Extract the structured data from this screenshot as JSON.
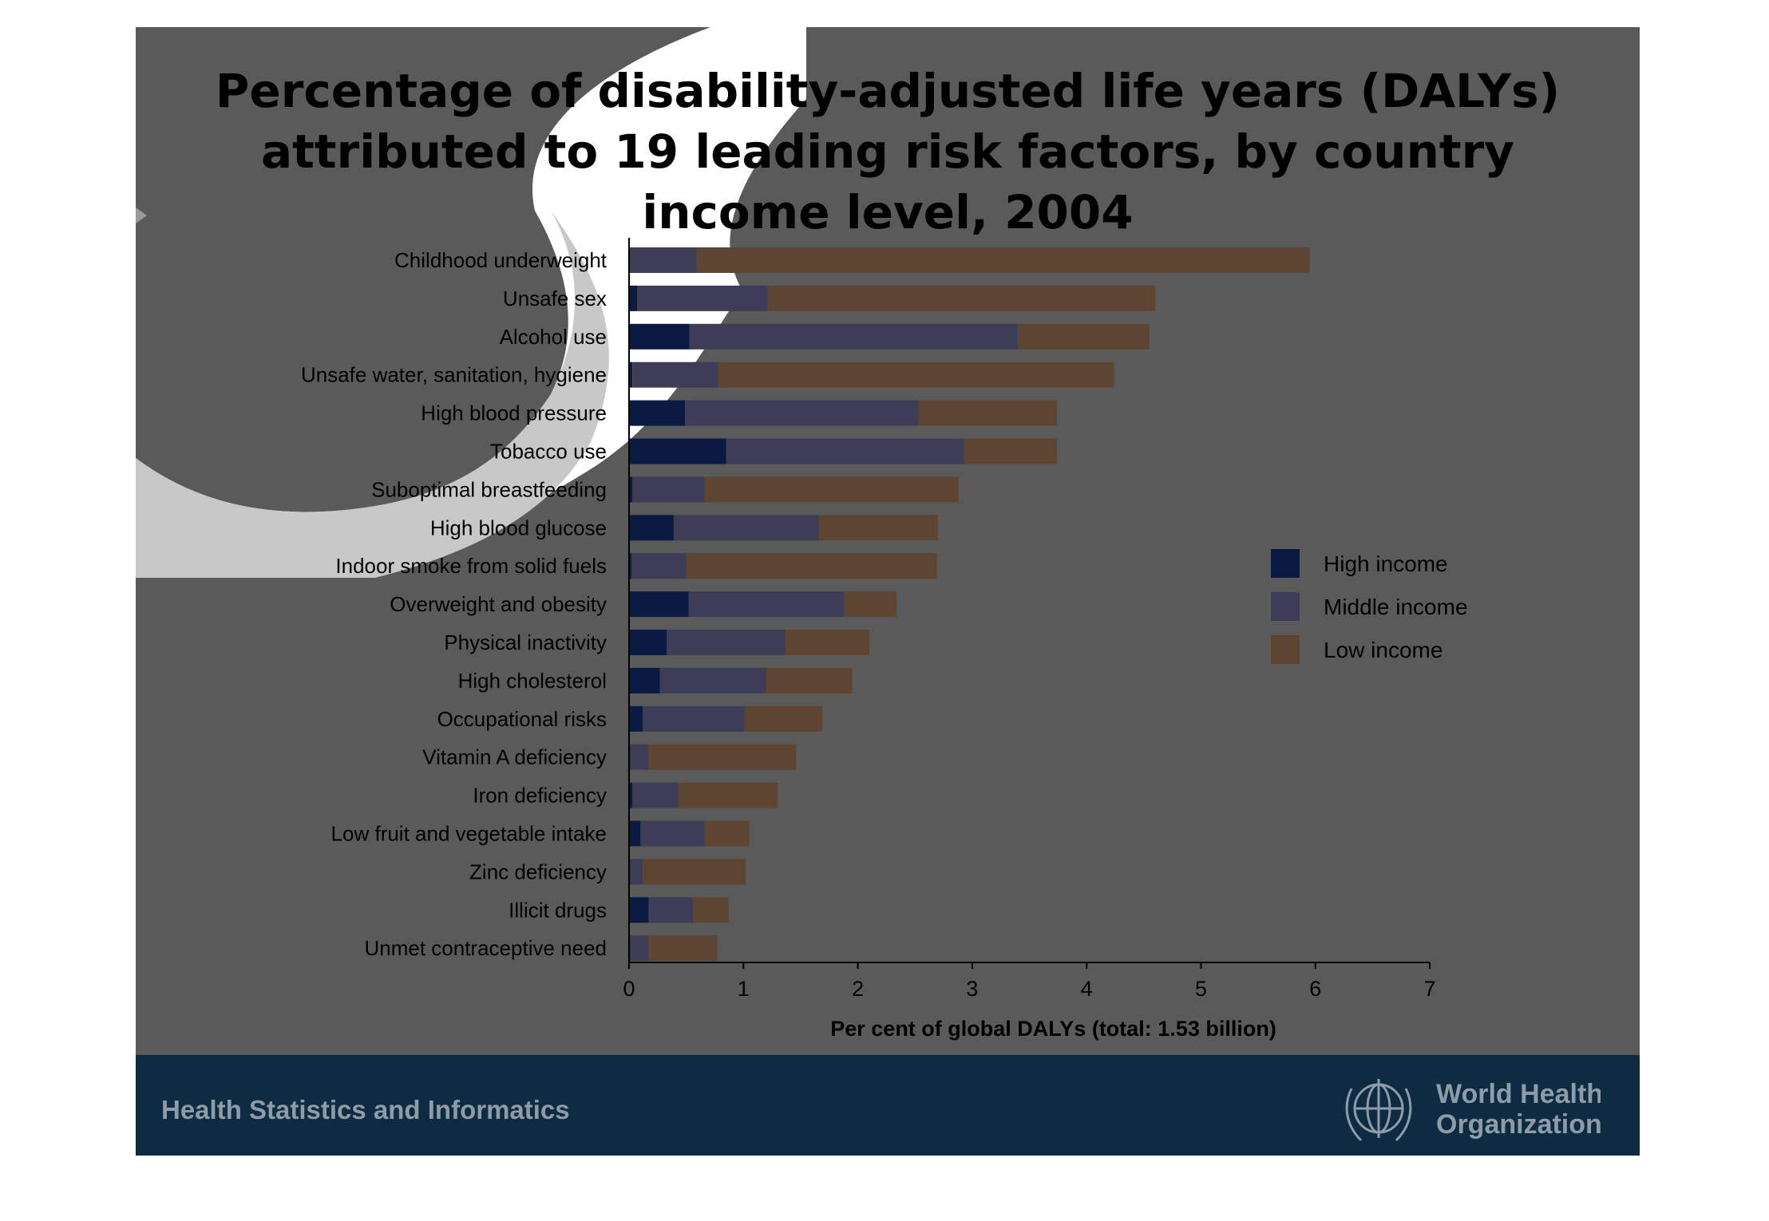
{
  "slide": {
    "title": "Percentage of disability-adjusted life years (DALYs)\nattributed to 19 leading risk factors, by country\nincome level, 2004",
    "footer_text": "Health Statistics and Informatics",
    "logo_line1": "World Health",
    "logo_line2": "Organization"
  },
  "colors": {
    "slide_bg": "#5a5a5a",
    "footer_bg": "#0d2b42",
    "high_income": "#0a1a40",
    "middle_income": "#3d3d57",
    "low_income": "#5e4532"
  },
  "chart_data": {
    "type": "bar",
    "orientation": "horizontal",
    "stacked": true,
    "title": "",
    "xlabel": "Per cent of global DALYs (total: 1.53 billion)",
    "ylabel": "",
    "xlim": [
      0,
      7
    ],
    "xticks": [
      0,
      1,
      2,
      3,
      4,
      5,
      6,
      7
    ],
    "grid": false,
    "legend_position": "right",
    "categories": [
      "Childhood underweight",
      "Unsafe sex",
      "Alcohol use",
      "Unsafe water, sanitation, hygiene",
      "High blood pressure",
      "Tobacco use",
      "Suboptimal breastfeeding",
      "High blood glucose",
      "Indoor smoke from solid fuels",
      "Overweight and obesity",
      "Physical inactivity",
      "High cholesterol",
      "Occupational risks",
      "Vitamin A deficiency",
      "Iron deficiency",
      "Low fruit and vegetable intake",
      "Zinc deficiency",
      "Illicit drugs",
      "Unmet contraceptive need"
    ],
    "series": [
      {
        "name": "High income",
        "values": [
          0.01,
          0.07,
          0.53,
          0.03,
          0.49,
          0.85,
          0.03,
          0.39,
          0.02,
          0.52,
          0.33,
          0.27,
          0.12,
          0.01,
          0.03,
          0.1,
          0.01,
          0.17,
          0.01
        ]
      },
      {
        "name": "Middle income",
        "values": [
          0.58,
          1.14,
          2.87,
          0.75,
          2.04,
          2.08,
          0.63,
          1.27,
          0.48,
          1.36,
          1.04,
          0.93,
          0.89,
          0.16,
          0.4,
          0.56,
          0.11,
          0.39,
          0.16
        ]
      },
      {
        "name": "Low income",
        "values": [
          5.36,
          3.39,
          1.15,
          3.46,
          1.21,
          0.81,
          2.22,
          1.04,
          2.19,
          0.46,
          0.73,
          0.75,
          0.68,
          1.29,
          0.87,
          0.39,
          0.9,
          0.31,
          0.6
        ]
      }
    ]
  }
}
